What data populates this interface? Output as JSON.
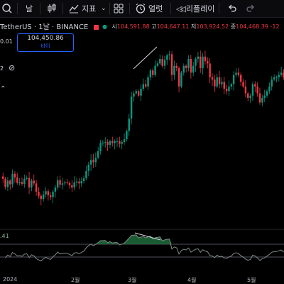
{
  "toolbar": {
    "interval": "날",
    "indicators_label": "지표",
    "alert_label": "얼럿",
    "replay_label": "리플레이"
  },
  "legend": {
    "symbol_title": "TetherUS · 1날 · BINANCE",
    "open_label": "시",
    "open_value": "104,591.88",
    "high_label": "고",
    "high_value": "104,647.11",
    "low_label": "저",
    "low_value": "103,924.52",
    "close_label": "종",
    "close_value": "104,468.39",
    "change_fragment": "-12",
    "small_value": "0.01",
    "price_value": "104,450.86",
    "price_sub": "바이",
    "indicator_count": "2",
    "rsi_value": ".41"
  },
  "xaxis": [
    "2024",
    "2월",
    "3월",
    "4월",
    "5월"
  ],
  "colors": {
    "up": "#089981",
    "down": "#f23645",
    "background": "#000000",
    "rsi_line": "#7e8b86",
    "rsi_fill": "#1f6b3a",
    "accent": "#2962ff"
  },
  "chart_data": {
    "type": "candlestick",
    "title": "TetherUS · 1날 · BINANCE",
    "interval": "1D",
    "x_tick_labels": [
      "2024",
      "2월",
      "3월",
      "4월",
      "5월"
    ],
    "close_series": [
      43.9,
      42.1,
      43.5,
      42.7,
      45.0,
      44.2,
      43.0,
      43.2,
      42.8,
      43.9,
      44.1,
      42.0,
      43.5,
      42.9,
      41.1,
      40.2,
      39.5,
      40.5,
      41.2,
      40.3,
      39.9,
      41.1,
      42.0,
      43.6,
      42.6,
      42.9,
      43.1,
      43.0,
      42.5,
      42.0,
      43.1,
      43.3,
      42.9,
      43.4,
      44.0,
      45.6,
      47.0,
      48.0,
      47.5,
      48.5,
      49.9,
      51.7,
      51.8,
      51.9,
      51.3,
      52.1,
      51.7,
      52.1,
      52.1,
      51.5,
      51.9,
      52.5,
      54.3,
      57.0,
      61.8,
      62.5,
      63.0,
      62.0,
      63.5,
      64.5,
      64.0,
      66.0,
      67.5,
      66.5,
      68.5,
      69.0,
      70.0,
      68.5,
      69.8,
      70.8,
      71.0,
      66.5,
      68.5,
      68.0,
      64.0,
      67.0,
      68.5,
      68.0,
      70.0,
      67.0,
      68.5,
      70.0,
      70.5,
      68.0,
      70.5,
      69.5,
      69.0,
      66.0,
      65.5,
      64.0,
      66.0,
      64.5,
      65.0,
      63.5,
      63.0,
      64.0,
      64.5,
      66.5,
      67.0,
      66.5,
      65.0,
      64.0,
      62.5,
      61.5,
      62.0,
      64.5,
      64.0,
      62.5,
      60.5,
      61.5,
      62.0,
      63.0,
      64.0,
      65.5,
      66.0,
      66.0,
      66.5,
      67.0,
      66.0
    ]
  }
}
